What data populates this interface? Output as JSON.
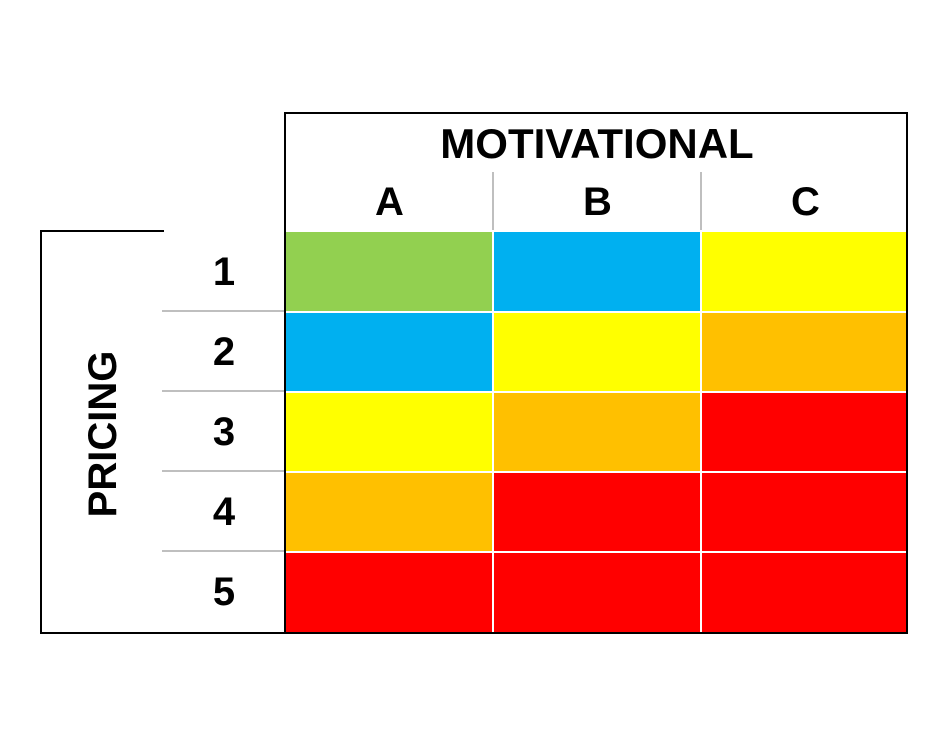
{
  "column_header": {
    "title": "MOTIVATIONAL",
    "labels": [
      "A",
      "B",
      "C"
    ]
  },
  "row_header": {
    "title": "PRICING",
    "labels": [
      "1",
      "2",
      "3",
      "4",
      "5"
    ]
  },
  "colors": {
    "green": "#92d050",
    "blue": "#00b0f0",
    "yellow": "#ffff00",
    "orange": "#ffc000",
    "red": "#ff0000"
  },
  "grid": [
    [
      "green",
      "blue",
      "yellow"
    ],
    [
      "blue",
      "yellow",
      "orange"
    ],
    [
      "yellow",
      "orange",
      "red"
    ],
    [
      "orange",
      "red",
      "red"
    ],
    [
      "red",
      "red",
      "red"
    ]
  ]
}
